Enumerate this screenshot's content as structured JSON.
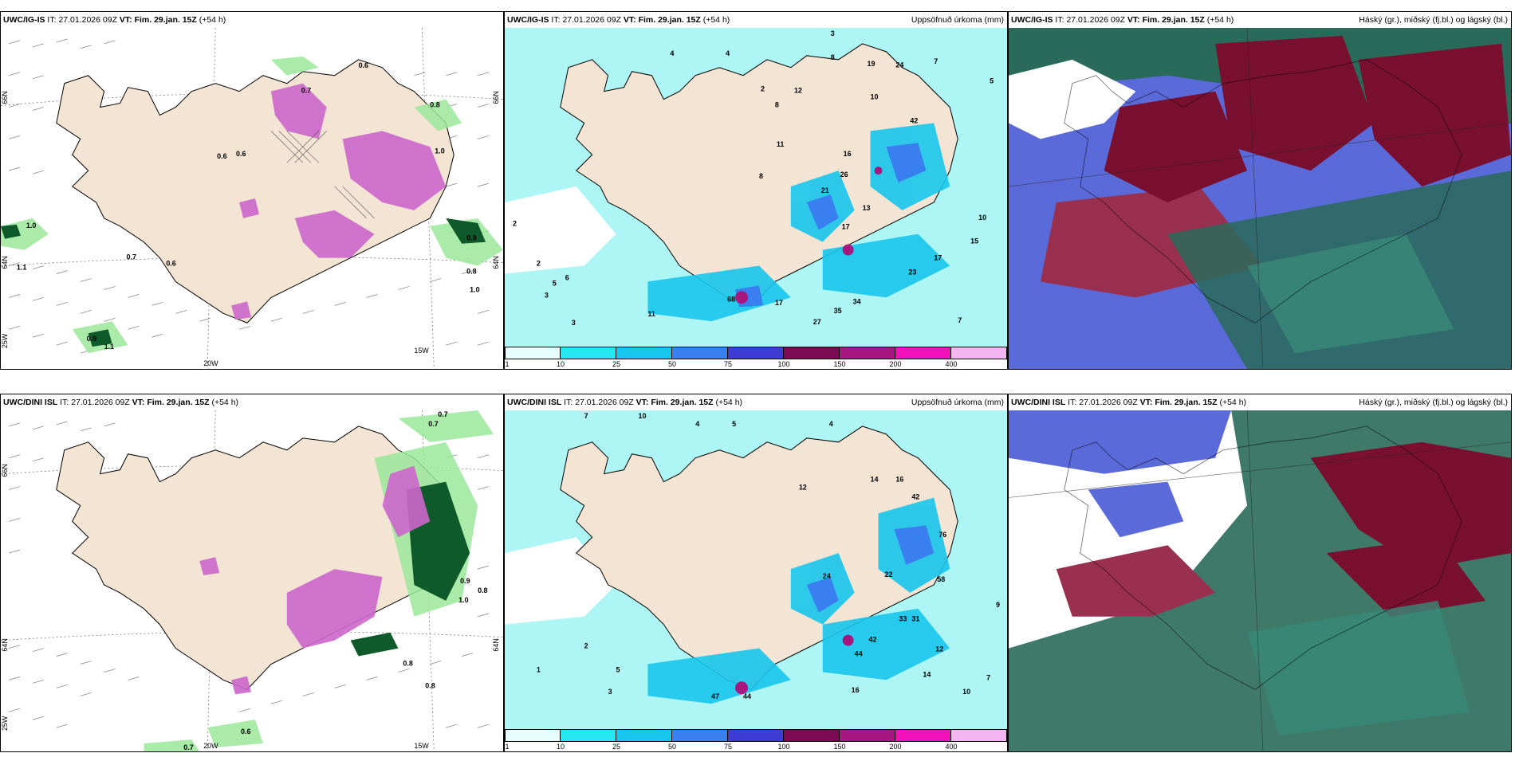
{
  "rows": [
    {
      "model": "UWC/IG-IS",
      "it_label": "IT:",
      "it_value": "27.01.2026 09Z",
      "vt_label": "VT:",
      "vt_value": "Fim. 29.jan. 15Z",
      "lead": "(+54 h)"
    },
    {
      "model": "UWC/DINI ISL",
      "it_label": "IT:",
      "it_value": "27.01.2026 09Z",
      "vt_label": "VT:",
      "vt_value": "Fim. 29.jan. 15Z",
      "lead": "(+54 h)"
    }
  ],
  "precip_title": "Uppsöfnuð úrkoma (mm)",
  "cloud_title": "Háský (gr.), miðský (fj.bl.) og lágský (bl.)",
  "axis": {
    "lat_top": "66N",
    "lat_mid": "64N",
    "lon_bottom_left": "25W",
    "lon_20": "20W",
    "lon_15": "15W",
    "right_66": "66N",
    "right_64": "64N"
  },
  "colorbar": {
    "ticks": [
      "1",
      "10",
      "25",
      "50",
      "75",
      "100",
      "150",
      "200",
      "400"
    ],
    "colors": [
      "#e8fdfd",
      "#27e8f0",
      "#18c6ec",
      "#3a7ff0",
      "#3f3cd6",
      "#7a0a52",
      "#a8177f",
      "#f410b8",
      "#f4b6f0"
    ]
  },
  "colors": {
    "land": "#f3e4d3",
    "sea_light": "#aef5f5",
    "snow_pink": "#cc66cc",
    "rain_green": "#9be89b",
    "rain_dark": "#0f5a2a",
    "cloud_high": "#7a1030",
    "cloud_mid": "#5a6ad8",
    "cloud_low": "#2a6a5a"
  },
  "labels": {
    "wind_top": [
      "0.6",
      "0.7",
      "0.8",
      "0.6",
      "0.6",
      "1.0",
      "1.0",
      "0.6",
      "0.7",
      "1.1",
      "0.9",
      "0.9",
      "1.0",
      "0.8",
      "1.1"
    ],
    "wind_bottom": [
      "0.7",
      "0.7",
      "0.9",
      "0.8",
      "1.0",
      "0.8",
      "0.8",
      "0.6",
      "0.7"
    ],
    "precip_top": [
      "4",
      "4",
      "3",
      "2",
      "8",
      "12",
      "10",
      "8",
      "19",
      "24",
      "7",
      "5",
      "11",
      "16",
      "26",
      "21",
      "17",
      "13",
      "42",
      "15",
      "17",
      "23",
      "34",
      "35",
      "27",
      "11",
      "68",
      "17",
      "10",
      "8",
      "5",
      "6",
      "3",
      "2",
      "2",
      "3",
      "7"
    ],
    "precip_bottom": [
      "7",
      "10",
      "4",
      "5",
      "4",
      "12",
      "14",
      "16",
      "24",
      "22",
      "42",
      "76",
      "58",
      "31",
      "33",
      "42",
      "44",
      "12",
      "14",
      "16",
      "10",
      "47",
      "44",
      "7",
      "5",
      "3",
      "1",
      "2",
      "9"
    ]
  }
}
